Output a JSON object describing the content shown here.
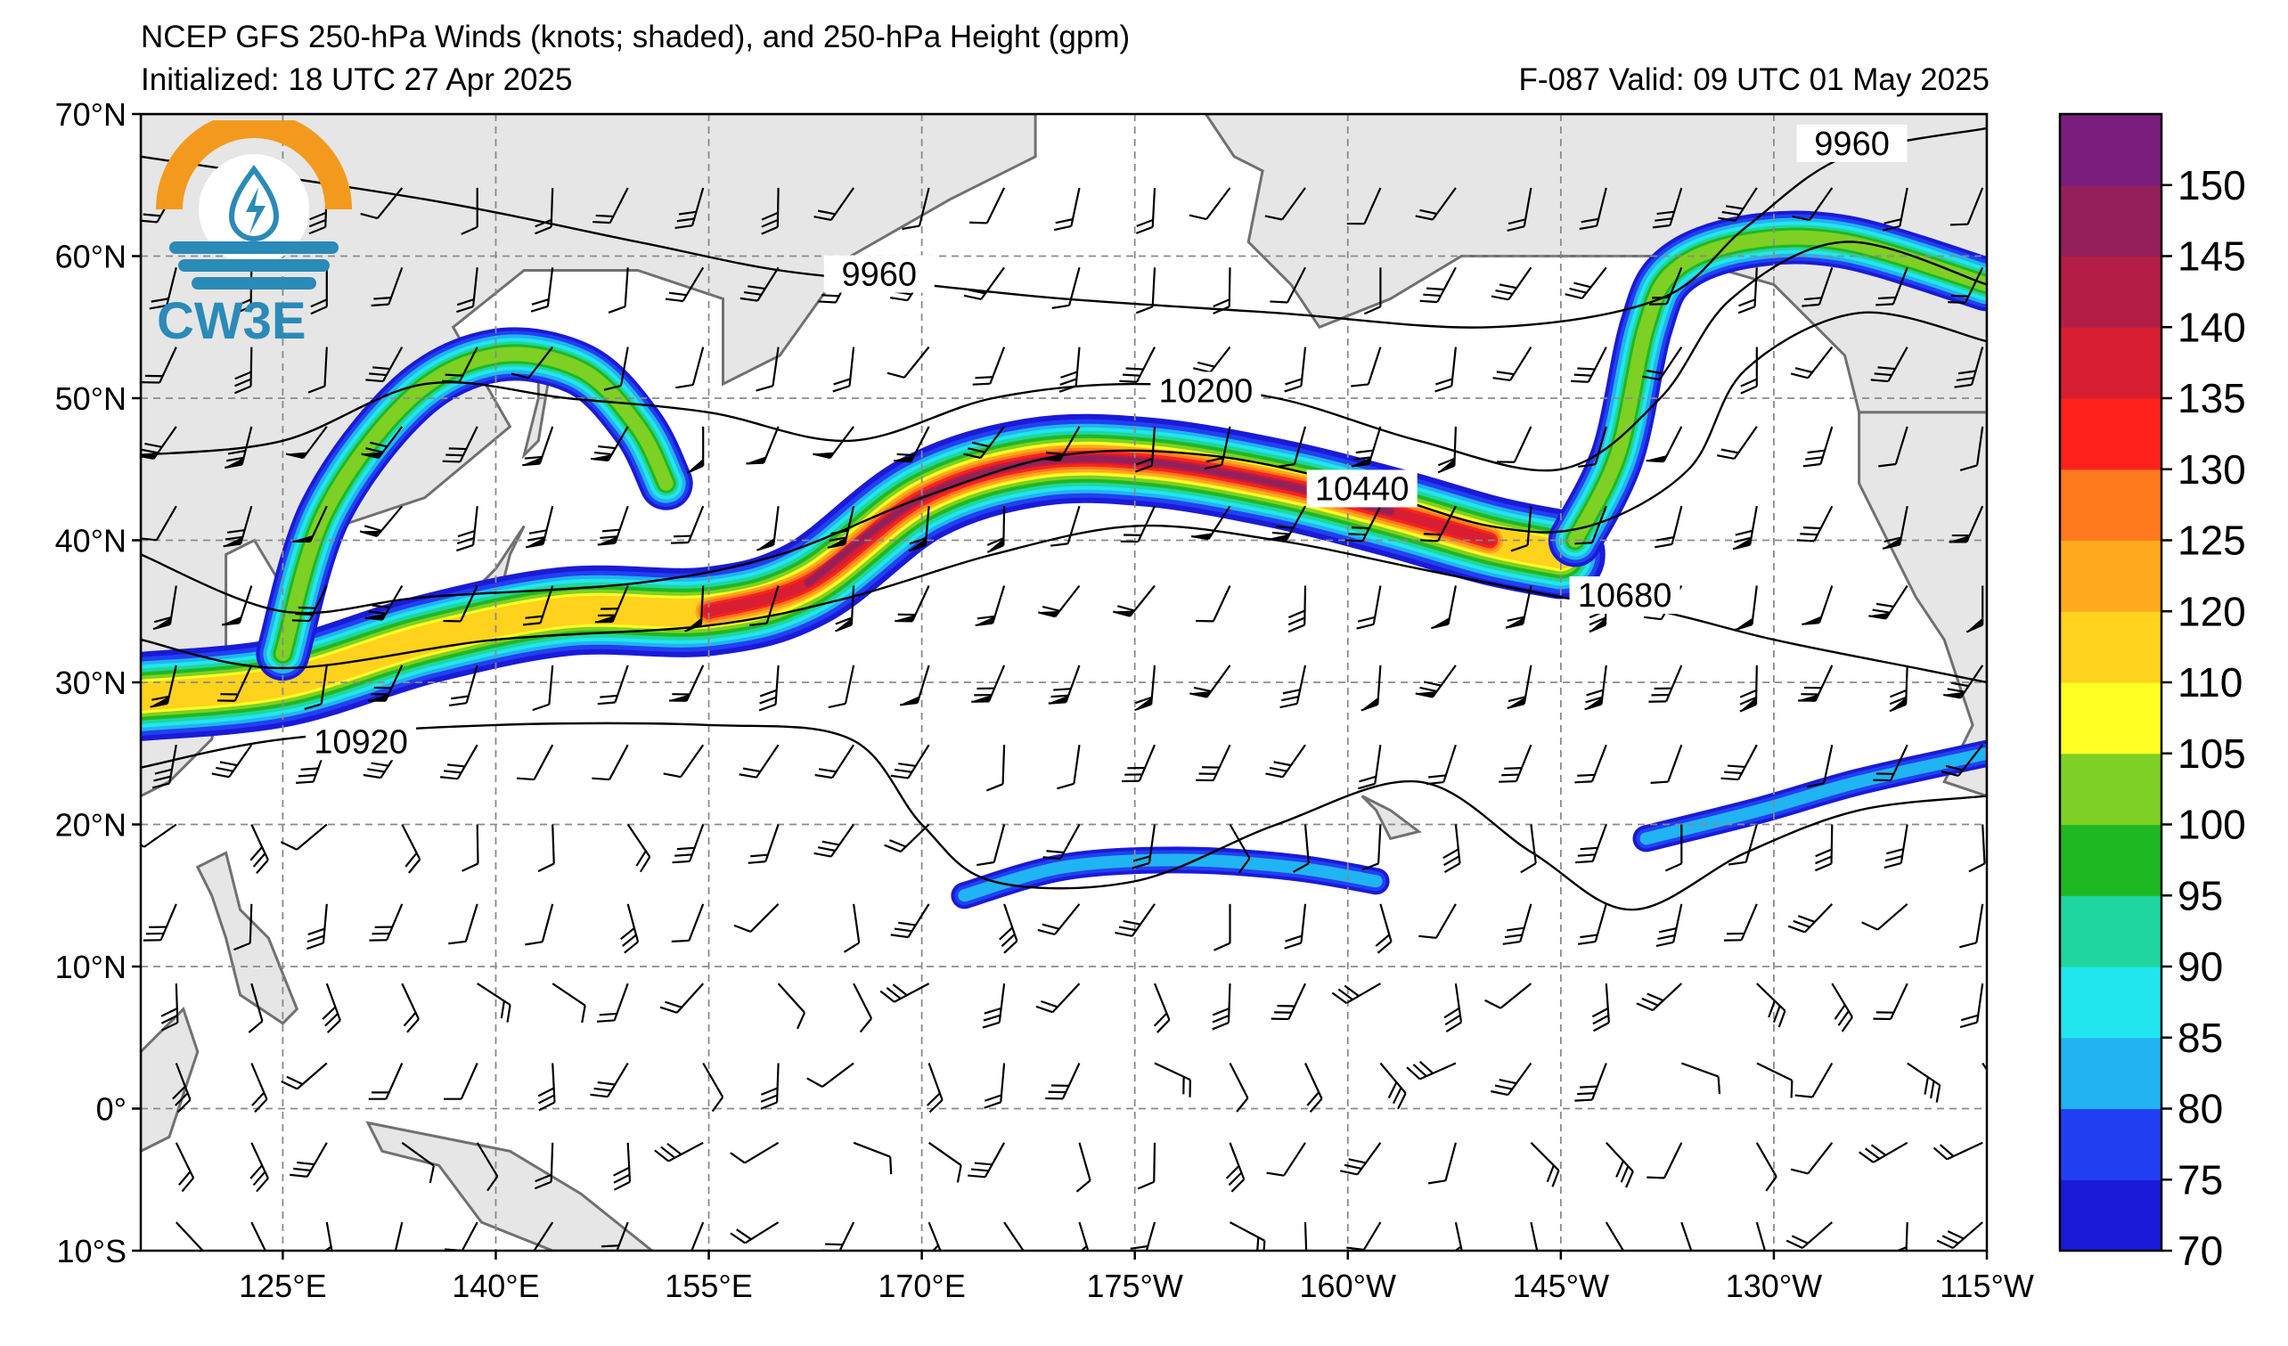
{
  "header": {
    "title": "NCEP GFS 250-hPa Winds (knots; shaded), and 250-hPa Height (gpm)",
    "initialized": "Initialized: 18 UTC 27 Apr 2025",
    "valid": "F-087  Valid: 09 UTC 01 May 2025"
  },
  "logo": {
    "text": "CW3E"
  },
  "map": {
    "lon_range": [
      115,
      245
    ],
    "lat_range": [
      -10,
      70
    ],
    "lat_ticks": [
      {
        "value": 70,
        "label": "70°N"
      },
      {
        "value": 60,
        "label": "60°N"
      },
      {
        "value": 50,
        "label": "50°N"
      },
      {
        "value": 40,
        "label": "40°N"
      },
      {
        "value": 30,
        "label": "30°N"
      },
      {
        "value": 20,
        "label": "20°N"
      },
      {
        "value": 10,
        "label": "10°N"
      },
      {
        "value": 0,
        "label": "0°"
      },
      {
        "value": -10,
        "label": "10°S"
      }
    ],
    "lon_ticks": [
      {
        "value": 125,
        "label": "125°E"
      },
      {
        "value": 140,
        "label": "140°E"
      },
      {
        "value": 155,
        "label": "155°E"
      },
      {
        "value": 170,
        "label": "170°E"
      },
      {
        "value": 185,
        "label": "175°W"
      },
      {
        "value": 200,
        "label": "160°W"
      },
      {
        "value": 215,
        "label": "145°W"
      },
      {
        "value": 230,
        "label": "130°W"
      },
      {
        "value": 245,
        "label": "115°W"
      }
    ],
    "grid": true,
    "contour_labels": [
      {
        "text": "9960",
        "lon": 167,
        "lat": 58.3
      },
      {
        "text": "9960",
        "lon": 235.5,
        "lat": 67.5
      },
      {
        "text": "10200",
        "lon": 190,
        "lat": 50.1
      },
      {
        "text": "10440",
        "lon": 201,
        "lat": 43.2
      },
      {
        "text": "10680",
        "lon": 219.5,
        "lat": 35.7
      },
      {
        "text": "10920",
        "lon": 130.5,
        "lat": 25.4
      }
    ],
    "height_contours": [
      {
        "value": 9960,
        "points": [
          [
            115,
            67
          ],
          [
            135,
            64
          ],
          [
            150,
            61
          ],
          [
            160,
            59
          ],
          [
            170,
            58
          ],
          [
            180,
            57
          ],
          [
            195,
            56
          ],
          [
            210,
            55
          ],
          [
            222,
            57
          ],
          [
            228,
            62
          ],
          [
            235,
            67
          ],
          [
            245,
            69
          ]
        ]
      },
      {
        "value": 10200,
        "points": [
          [
            115,
            46
          ],
          [
            125,
            47
          ],
          [
            135,
            51
          ],
          [
            145,
            50
          ],
          [
            155,
            49
          ],
          [
            165,
            47
          ],
          [
            175,
            50
          ],
          [
            185,
            51
          ],
          [
            195,
            50
          ],
          [
            205,
            47
          ],
          [
            215,
            45
          ],
          [
            222,
            50
          ],
          [
            227,
            57
          ],
          [
            235,
            61
          ],
          [
            245,
            58
          ]
        ]
      },
      {
        "value": 10440,
        "points": [
          [
            115,
            39
          ],
          [
            125,
            35
          ],
          [
            135,
            36
          ],
          [
            150,
            37
          ],
          [
            160,
            39
          ],
          [
            170,
            43
          ],
          [
            180,
            46
          ],
          [
            190,
            46
          ],
          [
            200,
            44
          ],
          [
            210,
            41
          ],
          [
            217,
            41
          ],
          [
            224,
            45
          ],
          [
            228,
            52
          ],
          [
            236,
            56
          ],
          [
            245,
            54
          ]
        ]
      },
      {
        "value": 10680,
        "points": [
          [
            115,
            33
          ],
          [
            125,
            31
          ],
          [
            140,
            33
          ],
          [
            155,
            34
          ],
          [
            165,
            36
          ],
          [
            175,
            39
          ],
          [
            185,
            41
          ],
          [
            195,
            40
          ],
          [
            205,
            38
          ],
          [
            215,
            36
          ],
          [
            222,
            35
          ],
          [
            230,
            33
          ],
          [
            240,
            31
          ],
          [
            245,
            30
          ]
        ]
      },
      {
        "value": 10920,
        "points": [
          [
            115,
            24
          ],
          [
            125,
            26
          ],
          [
            140,
            27
          ],
          [
            155,
            27
          ],
          [
            165,
            26
          ],
          [
            170,
            20
          ],
          [
            175,
            16
          ],
          [
            185,
            16
          ],
          [
            195,
            20
          ],
          [
            205,
            23
          ],
          [
            213,
            18
          ],
          [
            220,
            14
          ],
          [
            228,
            18
          ],
          [
            236,
            21
          ],
          [
            245,
            22
          ]
        ]
      }
    ],
    "jet_axis": [
      [
        115,
        29
      ],
      [
        125,
        30
      ],
      [
        135,
        33
      ],
      [
        145,
        35
      ],
      [
        155,
        35
      ],
      [
        162,
        37
      ],
      [
        170,
        43
      ],
      [
        178,
        45.5
      ],
      [
        186,
        45.5
      ],
      [
        195,
        44
      ],
      [
        203,
        42
      ],
      [
        210,
        40
      ],
      [
        215,
        39
      ]
    ],
    "jet_hooks": [
      {
        "points": [
          [
            125,
            32
          ],
          [
            128,
            42
          ],
          [
            134,
            50
          ],
          [
            140,
            53
          ],
          [
            146,
            52
          ],
          [
            150,
            48
          ],
          [
            152,
            44
          ]
        ]
      },
      {
        "points": [
          [
            216,
            40
          ],
          [
            219,
            46
          ],
          [
            221,
            55
          ],
          [
            223,
            59
          ],
          [
            228,
            61
          ],
          [
            235,
            61
          ],
          [
            245,
            58
          ]
        ]
      }
    ],
    "weak_jets": [
      {
        "points": [
          [
            173,
            15
          ],
          [
            180,
            17
          ],
          [
            188,
            17.5
          ],
          [
            196,
            17
          ],
          [
            202,
            16
          ]
        ]
      },
      {
        "points": [
          [
            221,
            19
          ],
          [
            229,
            21
          ],
          [
            236,
            23
          ],
          [
            245,
            25
          ]
        ]
      }
    ]
  },
  "colorbar": {
    "units": "knots",
    "levels": [
      70,
      75,
      80,
      85,
      90,
      95,
      100,
      105,
      110,
      120,
      125,
      130,
      135,
      140,
      145,
      150,
      155
    ],
    "labels": [
      "70",
      "75",
      "80",
      "85",
      "90",
      "95",
      "100",
      "105",
      "110",
      "120",
      "125",
      "130",
      "135",
      "140",
      "145",
      "150"
    ],
    "colors": [
      "#1a1ad8",
      "#2240f2",
      "#20b4f2",
      "#22e6ee",
      "#20d6a0",
      "#20b820",
      "#7ed024",
      "#ffff24",
      "#ffd21e",
      "#ffaa1e",
      "#ff7a1c",
      "#ff221c",
      "#d81e32",
      "#b41e46",
      "#94205a",
      "#7a1e7e"
    ]
  },
  "style": {
    "land": "#e6e6e6",
    "coast": "#707070",
    "grid": "#8a8a8a"
  }
}
